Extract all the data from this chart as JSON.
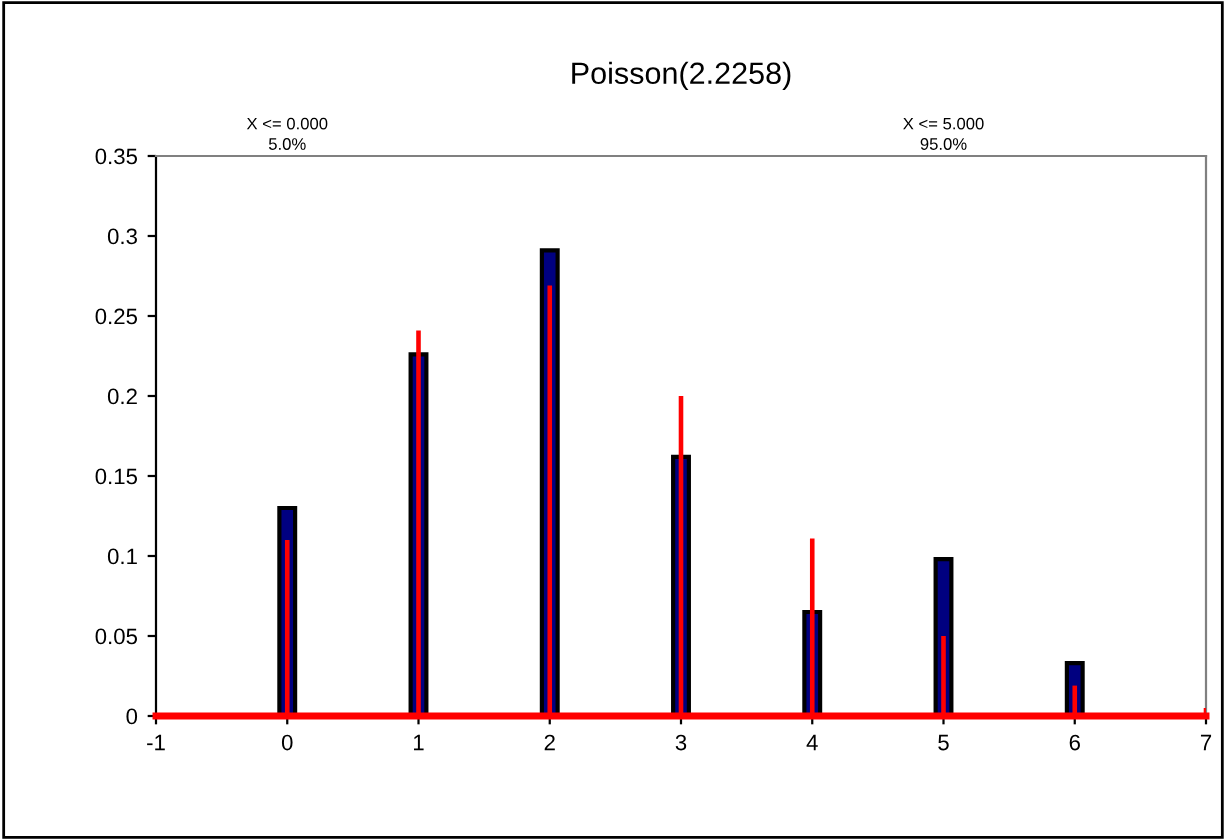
{
  "chart_data": {
    "type": "bar",
    "title": "Poisson(2.2258)",
    "series": [
      {
        "color": "#000080",
        "x": [
          0,
          1,
          2,
          3,
          4,
          5,
          6
        ],
        "values": [
          0.13,
          0.226,
          0.291,
          0.162,
          0.065,
          0.098,
          0.033
        ]
      },
      {
        "color": "#ff0000",
        "x": [
          0,
          1,
          2,
          3,
          4,
          5,
          6,
          7
        ],
        "values": [
          0.11,
          0.241,
          0.269,
          0.2,
          0.111,
          0.05,
          0.019,
          0.005
        ]
      },
      {
        "type": "line",
        "color": "#ff0000",
        "x": [
          -1,
          7
        ],
        "values": [
          0,
          0
        ]
      }
    ],
    "xlim": [
      -1,
      7
    ],
    "xticks": [
      -1,
      0,
      1,
      2,
      3,
      4,
      5,
      6,
      7
    ],
    "ylim": [
      0,
      0.35
    ],
    "yticks": [
      0,
      0.05,
      0.1,
      0.15,
      0.2,
      0.25,
      0.3,
      0.35
    ],
    "annotations": [
      "X <= 0.000\n5.0%",
      "X <= 5.000\n95.0%"
    ],
    "grid": false,
    "legend": false
  }
}
